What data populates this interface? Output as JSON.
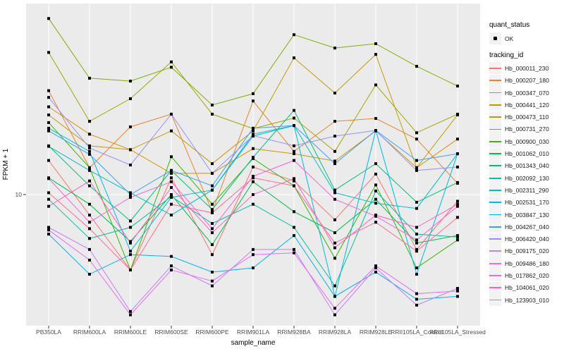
{
  "legend": {
    "quant_status_title": "quant_status",
    "ok_label": "OK",
    "tracking_id_title": "tracking_id"
  },
  "chart_data": {
    "type": "line",
    "title": "",
    "xlabel": "sample_name",
    "ylabel": "FPKM + 1",
    "yscale": "log10",
    "ybreaks": [
      10
    ],
    "ytick_labels": [
      "10"
    ],
    "ylim_approx": [
      2.5,
      70
    ],
    "grid": "major-only",
    "legend_position": "right",
    "panel_background": "#EBEBEB",
    "gridline_color": "#FFFFFF",
    "point_color": "#000000",
    "quant_status_value": "OK",
    "categories": [
      "PB350LA",
      "RRIM600LA",
      "RRIM600LE",
      "RRIM600SE",
      "RRIM600PE",
      "RRIM901LA",
      "RRIM928BA",
      "RRIM928LA",
      "RRIM928LE",
      "RRII105LA_Control",
      "RRII105LA_Stressed"
    ],
    "series": [
      {
        "name": "Hb_000011_230",
        "color": "#F8766D",
        "values": [
          14.5,
          8.0,
          4.4,
          12.0,
          5.2,
          13.5,
          11.6,
          7.6,
          12.5,
          5.5,
          9.3
        ]
      },
      {
        "name": "Hb_000207_180",
        "color": "#EA8331",
        "values": [
          31.0,
          13.4,
          20.9,
          24.0,
          8.3,
          27.7,
          16.0,
          22.2,
          22.9,
          18.3,
          11.3
        ]
      },
      {
        "name": "Hb_000347_070",
        "color": "#D89000",
        "values": [
          26.0,
          19.3,
          16.3,
          12.6,
          12.6,
          16.5,
          15.6,
          14.4,
          20.0,
          13.4,
          18.3
        ]
      },
      {
        "name": "Hb_000441_120",
        "color": "#C09B00",
        "values": [
          23.8,
          17.0,
          16.3,
          20.0,
          14.0,
          20.0,
          44.3,
          30.2,
          46.0,
          13.4,
          23.8
        ]
      },
      {
        "name": "Hb_000473_110",
        "color": "#A3A500",
        "values": [
          47.0,
          22.2,
          28.4,
          42.4,
          24.0,
          20.5,
          23.0,
          16.0,
          33.0,
          19.6,
          24.0
        ]
      },
      {
        "name": "Hb_000731_270",
        "color": "#7CAE00",
        "values": [
          68.0,
          35.5,
          34.4,
          40.0,
          26.5,
          30.0,
          57.0,
          49.3,
          51.7,
          40.4,
          32.6
        ]
      },
      {
        "name": "Hb_000900_030",
        "color": "#39B600",
        "values": [
          21.9,
          13.4,
          4.4,
          15.1,
          9.0,
          14.8,
          11.0,
          5.0,
          11.1,
          4.5,
          6.1
        ]
      },
      {
        "name": "Hb_001062_010",
        "color": "#00BB4E",
        "values": [
          12.0,
          9.0,
          6.0,
          10.0,
          5.8,
          11.5,
          8.3,
          6.6,
          9.5,
          5.9,
          6.4
        ]
      },
      {
        "name": "Hb_001343_040",
        "color": "#00BF7D",
        "values": [
          17.0,
          11.0,
          7.5,
          13.0,
          8.5,
          15.0,
          25.0,
          10.5,
          14.0,
          9.2,
          11.4
        ]
      },
      {
        "name": "Hb_002092_130",
        "color": "#00C1A3",
        "values": [
          9.5,
          6.2,
          7.0,
          9.8,
          7.3,
          9.0,
          7.0,
          3.7,
          10.4,
          6.5,
          6.3
        ]
      },
      {
        "name": "Hb_002311_290",
        "color": "#00BFC4",
        "values": [
          16.9,
          13.0,
          10.2,
          8.0,
          10.5,
          18.9,
          21.2,
          10.2,
          9.1,
          8.6,
          15.6
        ]
      },
      {
        "name": "Hb_002531_170",
        "color": "#00BAE0",
        "values": [
          20.6,
          16.0,
          5.4,
          9.7,
          10.5,
          19.3,
          21.2,
          3.3,
          20.1,
          4.2,
          15.6
        ]
      },
      {
        "name": "Hb_003847_130",
        "color": "#00B0F6",
        "values": [
          6.5,
          4.2,
          5.2,
          5.1,
          4.3,
          4.5,
          6.4,
          3.3,
          4.3,
          3.2,
          3.3
        ]
      },
      {
        "name": "Hb_004267_040",
        "color": "#35A2FF",
        "values": [
          20.0,
          15.5,
          10.0,
          13.0,
          11.0,
          20.6,
          21.2,
          14.0,
          20.1,
          14.5,
          15.6
        ]
      },
      {
        "name": "Hb_006420_040",
        "color": "#9590FF",
        "values": [
          28.8,
          16.6,
          13.8,
          24.0,
          12.6,
          19.0,
          17.0,
          18.9,
          20.1,
          13.0,
          13.5
        ]
      },
      {
        "name": "Hb_009175_020",
        "color": "#C77CFF",
        "values": [
          7.0,
          5.5,
          2.8,
          4.6,
          3.7,
          5.5,
          5.5,
          2.7,
          4.5,
          3.0,
          3.6
        ]
      },
      {
        "name": "Hb_009486_180",
        "color": "#E76BF3",
        "values": [
          6.8,
          4.9,
          2.7,
          4.4,
          3.9,
          5.2,
          5.3,
          2.9,
          4.6,
          3.4,
          3.5
        ]
      },
      {
        "name": "Hb_017862_020",
        "color": "#FA62DB",
        "values": [
          11.9,
          7.4,
          9.7,
          11.5,
          6.9,
          12.2,
          14.5,
          9.5,
          7.9,
          6.1,
          8.8
        ]
      },
      {
        "name": "Hb_104061_020",
        "color": "#FF62BC",
        "values": [
          8.8,
          11.6,
          5.9,
          10.8,
          6.6,
          10.0,
          11.9,
          5.6,
          8.0,
          7.0,
          9.0
        ]
      },
      {
        "name": "Hb_123903_010",
        "color": "#FF6A98",
        "values": [
          10.2,
          6.9,
          4.4,
          9.0,
          8.2,
          12.0,
          11.0,
          5.9,
          7.4,
          5.4,
          7.8
        ]
      }
    ]
  }
}
